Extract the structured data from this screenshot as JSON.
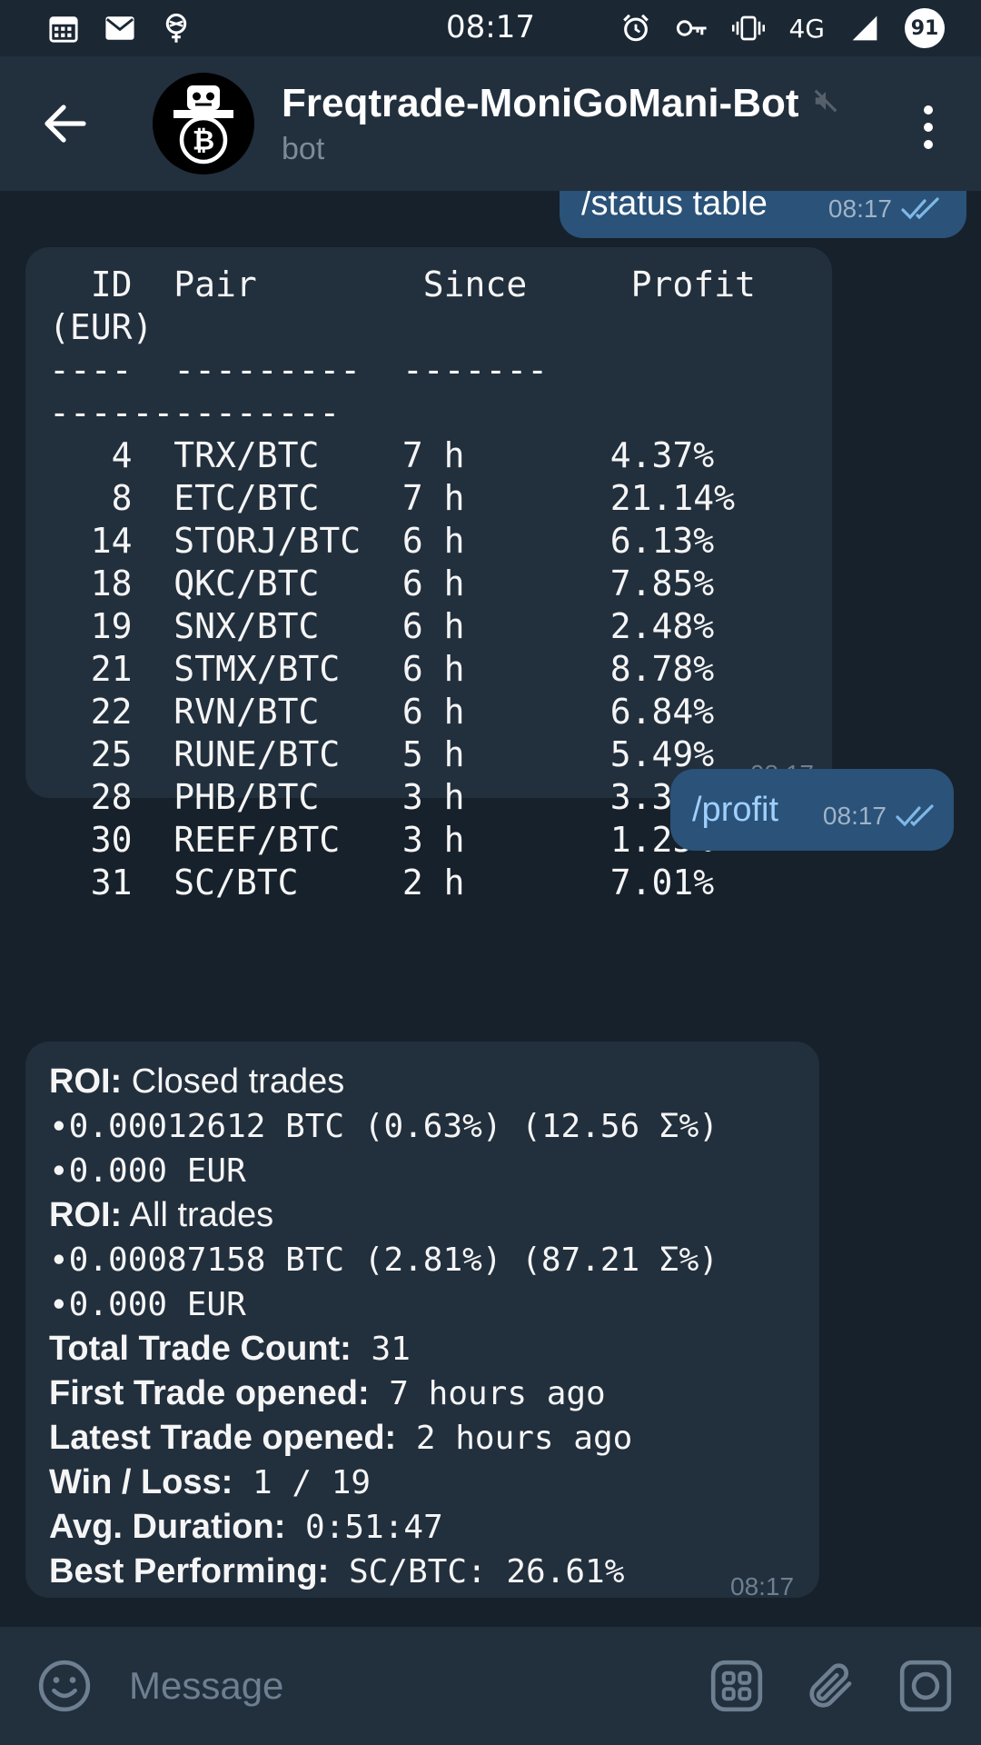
{
  "status_bar": {
    "time": "08:17",
    "network": "4G",
    "battery": "91"
  },
  "header": {
    "title": "Freqtrade-MoniGoMani-Bot",
    "subtitle": "bot"
  },
  "messages": {
    "cmd1": {
      "text": "/status table",
      "time": "08:17"
    },
    "table": {
      "text": "  ID  Pair        Since     Profit\n(EUR)\n----  ---------  -------\n--------------\n   4  TRX/BTC    7 h       4.37%\n   8  ETC/BTC    7 h       21.14%\n  14  STORJ/BTC  6 h       6.13%\n  18  QKC/BTC    6 h       7.85%\n  19  SNX/BTC    6 h       2.48%\n  21  STMX/BTC   6 h       8.78%\n  22  RVN/BTC    6 h       6.84%\n  25  RUNE/BTC   5 h       5.49%\n  28  PHB/BTC    3 h       3.30%\n  30  REEF/BTC   3 h       1.25%\n  31  SC/BTC     2 h       7.01%",
      "time": "08:17"
    },
    "cmd2": {
      "text": "/profit",
      "time": "08:17"
    },
    "profit": {
      "roi_closed_label": "ROI:",
      "roi_closed_text": " Closed trades",
      "closed_btc": "∙0.00012612 BTC (0.63%) (12.56 Σ%)",
      "closed_eur": "∙0.000 EUR",
      "roi_all_label": "ROI:",
      "roi_all_text": " All trades",
      "all_btc": "∙0.00087158 BTC (2.81%) (87.21 Σ%)",
      "all_eur": "∙0.000 EUR",
      "count_label": "Total Trade Count:",
      "count_value": " 31",
      "first_label": "First Trade opened:",
      "first_value": " 7 hours ago",
      "latest_label": "Latest Trade opened:",
      "latest_value": " 2 hours ago",
      "winloss_label": "Win / Loss:",
      "winloss_value": " 1 / 19",
      "duration_label": "Avg. Duration:",
      "duration_value": " 0:51:47",
      "best_label": "Best Performing:",
      "best_value": " SC/BTC: 26.61%",
      "time": "08:17"
    }
  },
  "input": {
    "placeholder": "Message"
  }
}
